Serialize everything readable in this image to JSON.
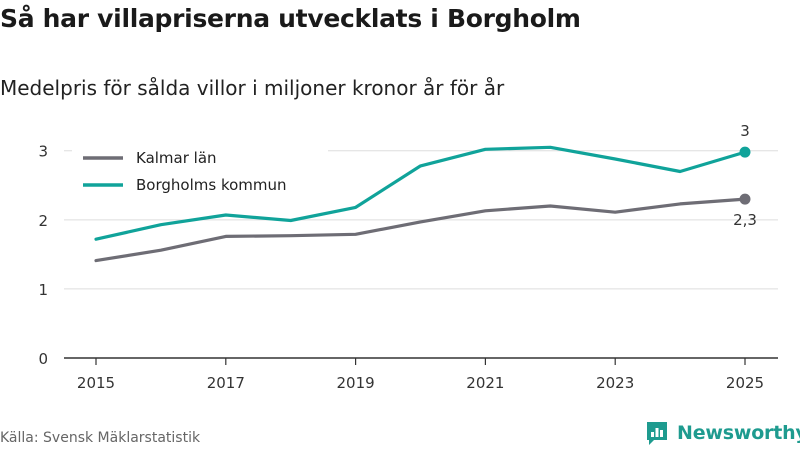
{
  "title": "Så har villapriserna utvecklats i Borgholm",
  "subtitle": "Medelpris för sålda villor i miljoner kronor år för år",
  "source": "Källa: Svensk Mäklarstatistik",
  "brand": "Newsworthy",
  "colors": {
    "kalmar": "#6e6d75",
    "borgholm": "#10a39a",
    "grid": "#dddddd",
    "axis": "#333333",
    "brand": "#1e9b8f"
  },
  "chart_data": {
    "type": "line",
    "title": "Så har villapriserna utvecklats i Borgholm",
    "subtitle": "Medelpris för sålda villor i miljoner kronor år för år",
    "xlabel": "",
    "ylabel": "",
    "x": [
      2015,
      2016,
      2017,
      2018,
      2019,
      2020,
      2021,
      2022,
      2023,
      2024,
      2025
    ],
    "xticks": [
      "2015",
      "2017",
      "2019",
      "2021",
      "2023",
      "2025"
    ],
    "yticks": [
      "0",
      "1",
      "2",
      "3"
    ],
    "ylim": [
      0,
      3.3
    ],
    "grid": true,
    "legend_position": "top-left",
    "series": [
      {
        "name": "Kalmar län",
        "color": "#6e6d75",
        "values": [
          1.41,
          1.56,
          1.76,
          1.77,
          1.79,
          1.97,
          2.13,
          2.2,
          2.11,
          2.23,
          2.3
        ],
        "end_label": "2,3"
      },
      {
        "name": "Borgholms kommun",
        "color": "#10a39a",
        "values": [
          1.72,
          1.93,
          2.07,
          1.99,
          2.18,
          2.78,
          3.02,
          3.05,
          2.88,
          2.7,
          2.98
        ],
        "end_label": "3"
      }
    ]
  }
}
